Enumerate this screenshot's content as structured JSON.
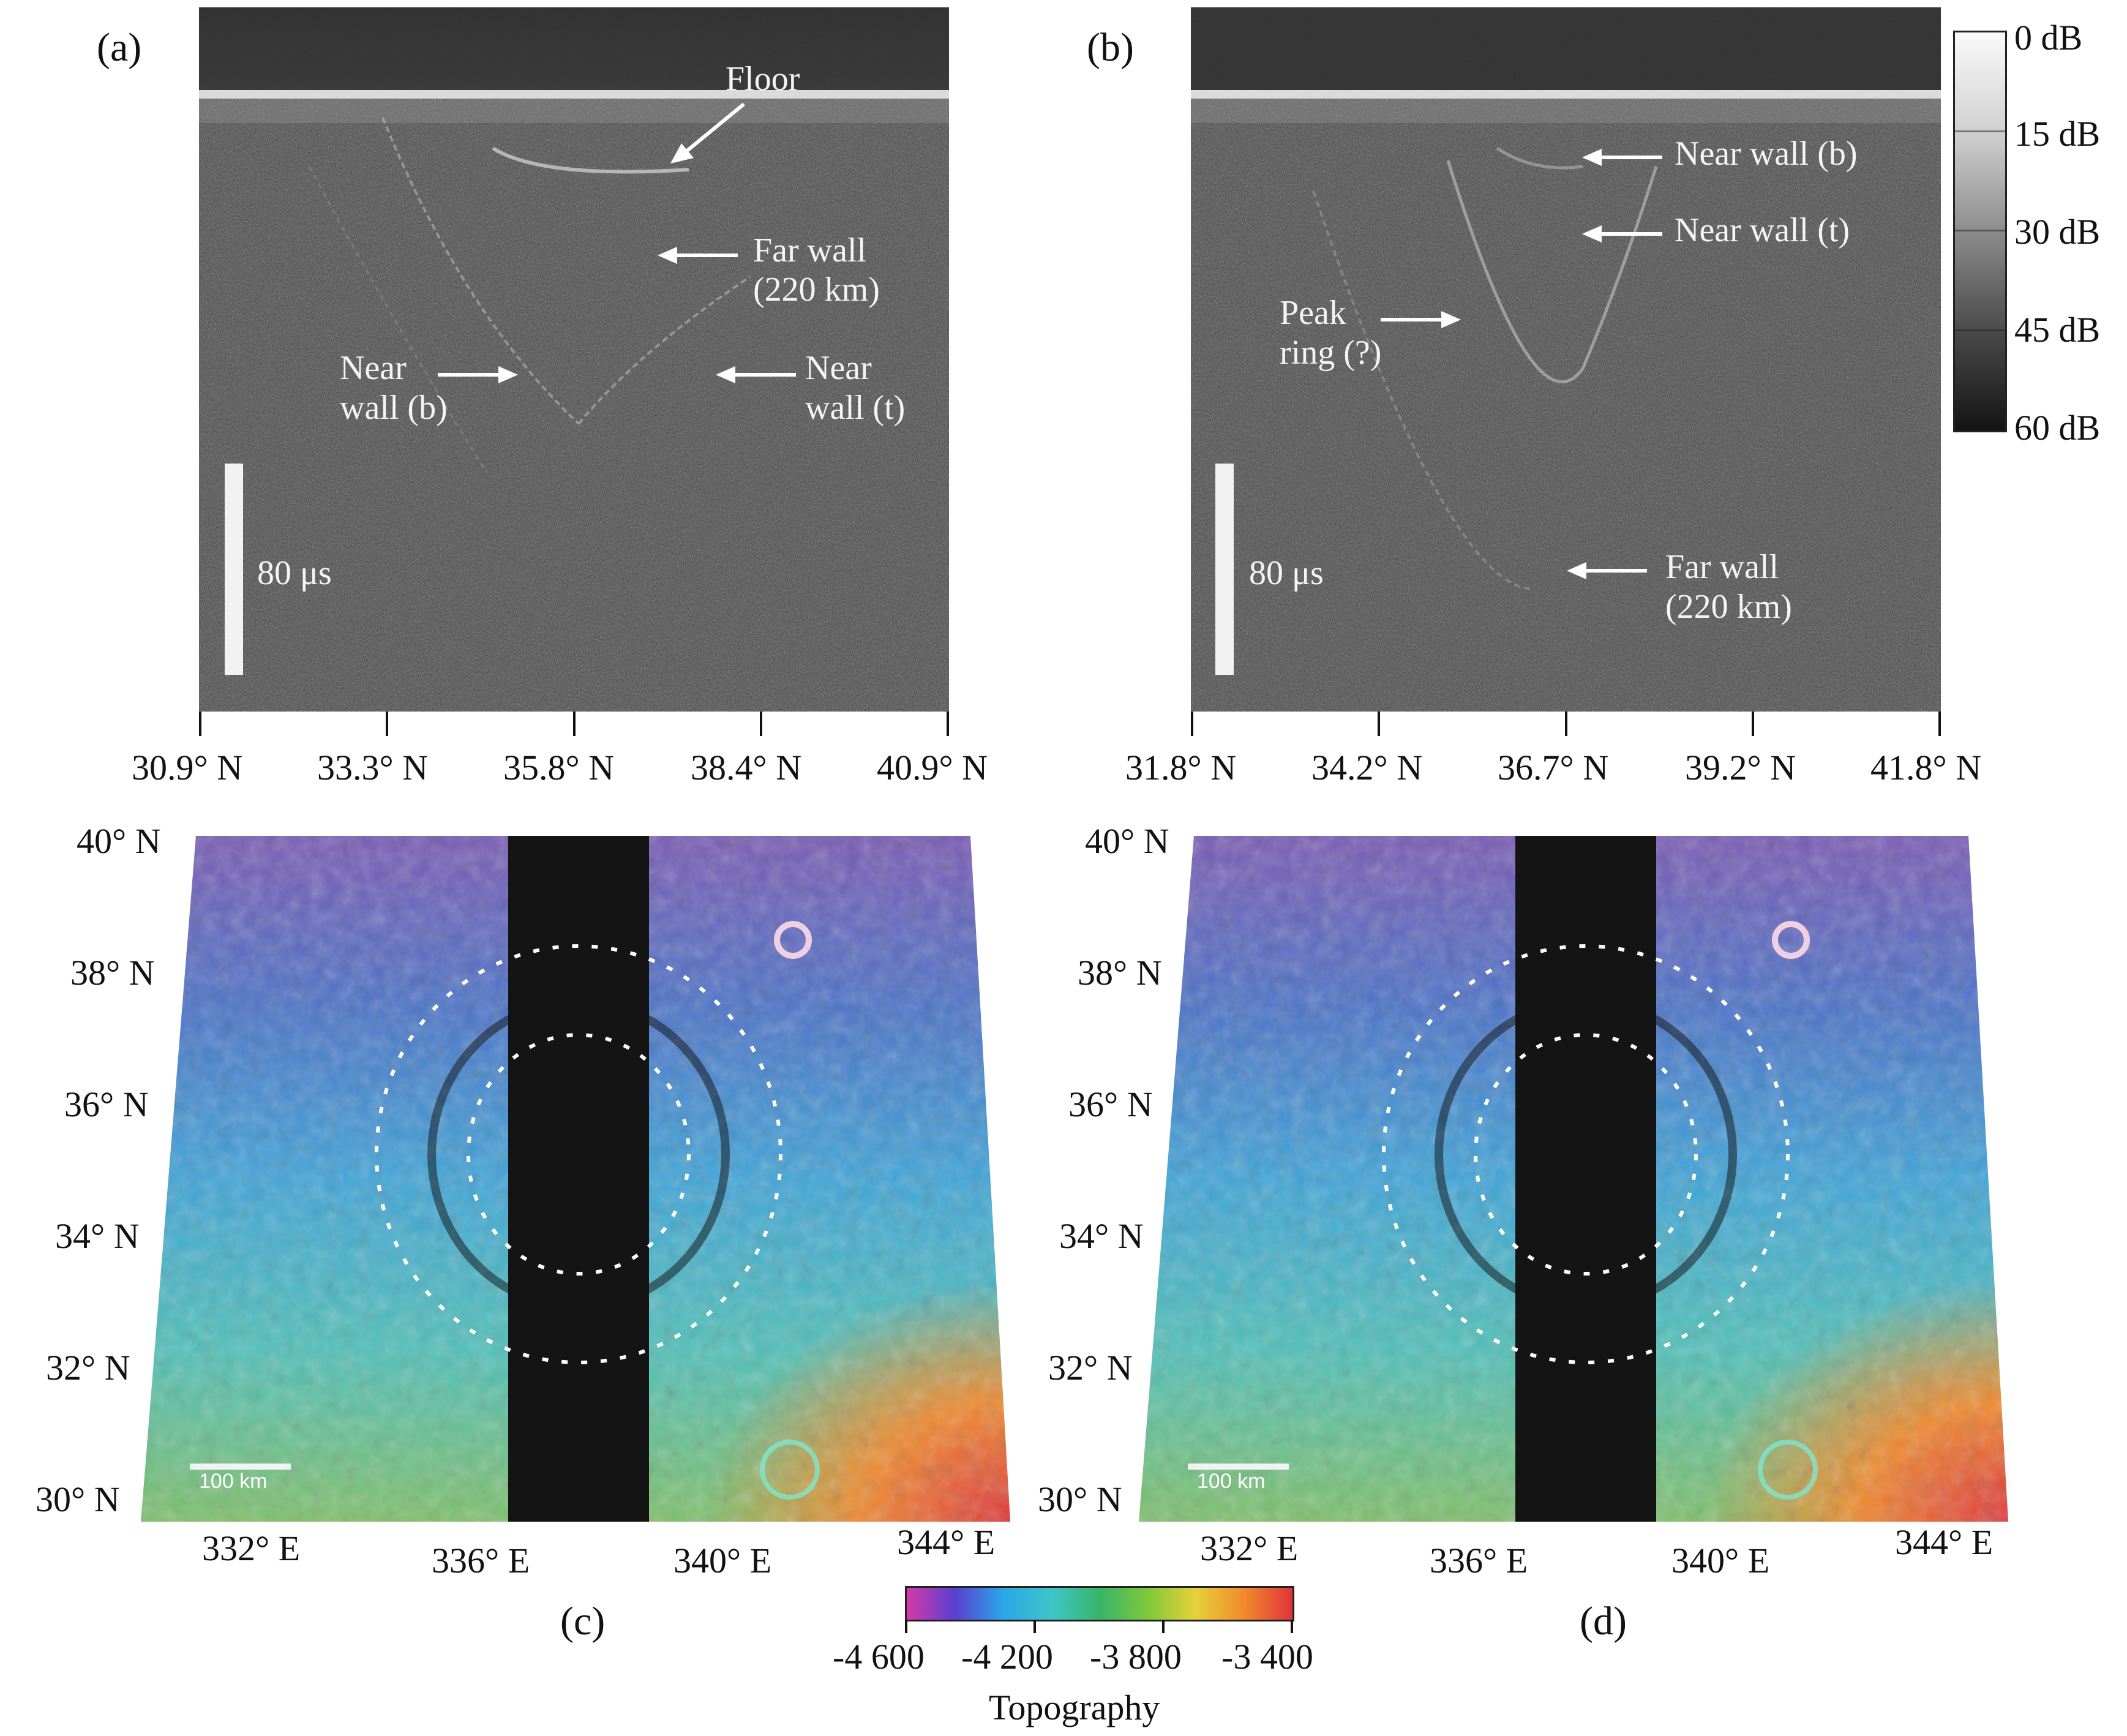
{
  "panels": {
    "a": {
      "label": "(a)",
      "x_ticks": [
        "30.9° N",
        "33.3° N",
        "35.8° N",
        "38.4° N",
        "40.9° N"
      ],
      "scale_label": "80 μs",
      "annotations": {
        "floor": "Floor",
        "far_wall_1": "Far wall",
        "far_wall_2": "(220 km)",
        "near_wall_b_1": "Near",
        "near_wall_b_2": "wall (b)",
        "near_wall_t_1": "Near",
        "near_wall_t_2": "wall (t)"
      }
    },
    "b": {
      "label": "(b)",
      "x_ticks": [
        "31.8° N",
        "34.2° N",
        "36.7° N",
        "39.2° N",
        "41.8° N"
      ],
      "scale_label": "80 μs",
      "annotations": {
        "near_wall_b": "Near wall (b)",
        "near_wall_t": "Near wall (t)",
        "peak_ring_1": "Peak",
        "peak_ring_2": "ring (?)",
        "far_wall_1": "Far wall",
        "far_wall_2": "(220 km)"
      }
    },
    "c": {
      "label": "(c)",
      "lat_labels": [
        "40° N",
        "38° N",
        "36° N",
        "34° N",
        "32° N",
        "30° N"
      ],
      "lon_labels": [
        "332° E",
        "336° E",
        "340° E",
        "344° E"
      ],
      "scale_label": "100 km"
    },
    "d": {
      "label": "(d)",
      "lat_labels": [
        "40° N",
        "38° N",
        "36° N",
        "34° N",
        "32° N",
        "30° N"
      ],
      "lon_labels": [
        "332° E",
        "336° E",
        "340° E",
        "344° E"
      ],
      "scale_label": "100 km"
    }
  },
  "db_scale": {
    "labels": [
      "0 dB",
      "15 dB",
      "30 dB",
      "45 dB",
      "60 dB"
    ]
  },
  "topography": {
    "title": "Topography",
    "tick_labels": [
      "-4 600",
      "-4 200",
      "-3 800",
      "-3 400"
    ],
    "colors": [
      "#d63aa8",
      "#5a3fd0",
      "#2aa7e8",
      "#3ec5c8",
      "#38b56a",
      "#7ec83a",
      "#e8d13a",
      "#f08a2c",
      "#e0343a"
    ]
  }
}
